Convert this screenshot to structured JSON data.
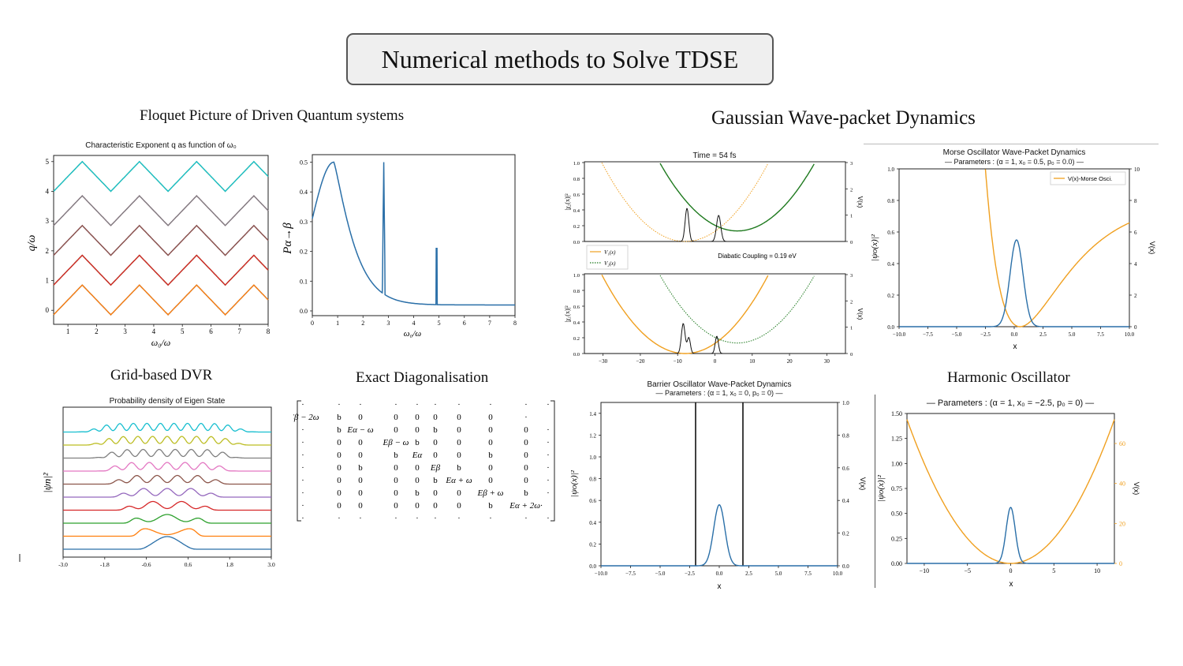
{
  "page": {
    "title": "Numerical methods to Solve TDSE",
    "sections": {
      "floquet": "Floquet Picture of Driven Quantum systems",
      "gaussian": "Gaussian Wave-packet Dynamics",
      "dvr": "Grid-based DVR",
      "exact": "Exact Diagonalisation",
      "harmonic": "Harmonic Oscillator"
    }
  },
  "panels": {
    "floquet_exponent": {
      "title": "Characteristic Exponent q as function of ω₀",
      "ylabel": "q/ω",
      "xlabel": "ω₀/ω",
      "xticks": [
        "1",
        "2",
        "3",
        "4",
        "5",
        "6",
        "7",
        "8"
      ],
      "yticks": [
        "0",
        "1",
        "2",
        "3",
        "4",
        "5"
      ]
    },
    "transition": {
      "ylabel": "Pα→β",
      "xlabel": "ω₀/ω",
      "xticks": [
        "0",
        "1",
        "2",
        "3",
        "4",
        "5",
        "6",
        "7",
        "8"
      ],
      "yticks": [
        "0.0",
        "0.1",
        "0.2",
        "0.3",
        "0.4",
        "0.5"
      ]
    },
    "dvr": {
      "title": "Probability density of Eigen State",
      "ylabel": "|ψn|²",
      "xticks": [
        "-3.0",
        "-1.8",
        "-0.6",
        "0.6",
        "1.8",
        "3.0"
      ]
    },
    "matrix": {
      "rows": [
        [
          "·",
          "·",
          "·",
          "·",
          "·",
          "·",
          "·",
          "·",
          "·",
          "·"
        ],
        [
          "·Eβ − 2ω",
          "b",
          "0",
          "0",
          "0",
          "0",
          "0",
          "0",
          "·",
          ""
        ],
        [
          "·",
          "b",
          "Eα − ω",
          "0",
          "0",
          "b",
          "0",
          "0",
          "0",
          "·"
        ],
        [
          "·",
          "0",
          "0",
          "Eβ − ω",
          "b",
          "0",
          "0",
          "0",
          "0",
          "·"
        ],
        [
          "·",
          "0",
          "0",
          "b",
          "Eα",
          "0",
          "0",
          "b",
          "0",
          "·"
        ],
        [
          "·",
          "0",
          "b",
          "0",
          "0",
          "Eβ",
          "b",
          "0",
          "0",
          "·"
        ],
        [
          "·",
          "0",
          "0",
          "0",
          "0",
          "b",
          "Eα + ω",
          "0",
          "0",
          "·"
        ],
        [
          "·",
          "0",
          "0",
          "0",
          "b",
          "0",
          "0",
          "Eβ + ω",
          "b",
          "·"
        ],
        [
          "·",
          "0",
          "0",
          "0",
          "0",
          "0",
          "0",
          "b",
          "Eα + 2ω·",
          ""
        ],
        [
          "·",
          "·",
          "·",
          "·",
          "·",
          "·",
          "·",
          "·",
          "·",
          "·"
        ]
      ]
    },
    "gauss_top": {
      "title": "Time = 54 fs",
      "ylabel": "|χ₂(x)|²",
      "y2label": "V(x)",
      "yticks": [
        "0.0",
        "0.2",
        "0.4",
        "0.6",
        "0.8",
        "1.0"
      ],
      "y2ticks": [
        "0",
        "1",
        "2",
        "3"
      ]
    },
    "gauss_bottom": {
      "title": "Diabatic Coupling = 0.19 eV",
      "ylabel": "|χ₁(x)|²",
      "y2label": "V(x)",
      "legend": [
        "V₁(x)",
        "V₂(x)"
      ],
      "yticks": [
        "0.0",
        "0.2",
        "0.4",
        "0.6",
        "0.8",
        "1.0"
      ],
      "y2ticks": [
        "0",
        "1",
        "2",
        "3"
      ],
      "xticks": [
        "−30",
        "−20",
        "−10",
        "0",
        "10",
        "20",
        "30"
      ]
    },
    "morse": {
      "title1": "Morse Oscillator Wave-Packet Dynamics",
      "title2": "— Parameters : (α = 1, x₀ = 0.5, p₀ = 0.0) —",
      "legend": "V(x)-Morse Osci.",
      "ylabel": "|ψo(x)|²",
      "y2label": "V(x)",
      "xlabel": "x",
      "xticks": [
        "−10.0",
        "−7.5",
        "−5.0",
        "−2.5",
        "0.0",
        "2.5",
        "5.0",
        "7.5",
        "10.0"
      ],
      "yticks": [
        "0.0",
        "0.2",
        "0.4",
        "0.6",
        "0.8",
        "1.0"
      ],
      "y2ticks": [
        "0",
        "2",
        "4",
        "6",
        "8",
        "10"
      ]
    },
    "barrier": {
      "title1": "Barrier Oscillator Wave-Packet Dynamics",
      "title2": "— Parameters : (α = 1, x₀ = 0, p₀ = 0) —",
      "ylabel": "|ψo(x)|²",
      "y2label": "V(x)",
      "xlabel": "x",
      "xticks": [
        "−10.0",
        "−7.5",
        "−5.0",
        "−2.5",
        "0.0",
        "2.5",
        "5.0",
        "7.5",
        "10.0"
      ],
      "yticks": [
        "0.0",
        "0.2",
        "0.4",
        "0.6",
        "0.8",
        "1.0",
        "1.2",
        "1.4"
      ],
      "y2ticks": [
        "0.0",
        "0.2",
        "0.4",
        "0.6",
        "0.8",
        "1.0"
      ]
    },
    "harmonic": {
      "title2": "— Parameters : (α = 1, x₀ = −2.5, p₀ = 0) —",
      "ylabel": "|ψo(x)|²",
      "y2label": "V(x)",
      "xlabel": "x",
      "xticks": [
        "−10",
        "−5",
        "0",
        "5",
        "10"
      ],
      "yticks": [
        "0.00",
        "0.25",
        "0.50",
        "0.75",
        "1.00",
        "1.25",
        "1.50"
      ],
      "y2ticks": [
        "0",
        "20",
        "40",
        "60"
      ]
    }
  },
  "colors": {
    "blue": "#2a6fa8",
    "orange": "#f0a020",
    "green": "#1f7a1f",
    "floquet": [
      "#2a6fa8",
      "#ff7f0e",
      "#2ca02c",
      "#d62728",
      "#9467bd",
      "#8c564b",
      "#e377c2",
      "#7f7f7f",
      "#bcbd22",
      "#17becf"
    ]
  }
}
